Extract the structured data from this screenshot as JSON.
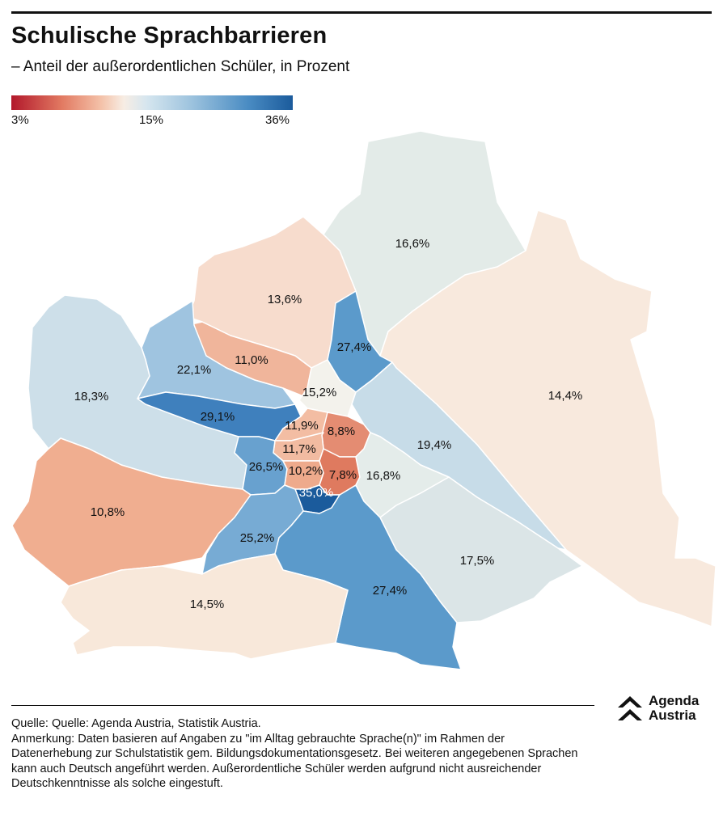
{
  "title": "Schulische Sprachbarrieren",
  "subtitle": "– Anteil der außerordentlichen Schüler, in Prozent",
  "legend": {
    "min_label": "3%",
    "mid_label": "15%",
    "max_label": "36%",
    "colors": [
      "#b2182b",
      "#e27a62",
      "#f4c2a9",
      "#f7ede4",
      "#d6e6ef",
      "#9dc3de",
      "#4a8cc3",
      "#1b5b9c"
    ]
  },
  "districts": [
    {
      "value": 16.6,
      "label": "16,6%",
      "color": "#e3ebe8"
    },
    {
      "value": 14.4,
      "label": "14,4%",
      "color": "#f8e9dd"
    },
    {
      "value": 13.6,
      "label": "13,6%",
      "color": "#f7dccd"
    },
    {
      "value": 27.4,
      "label": "27,4%",
      "color": "#5b9acb"
    },
    {
      "value": 11.0,
      "label": "11,0%",
      "color": "#f0b59b"
    },
    {
      "value": 22.1,
      "label": "22,1%",
      "color": "#9fc4e0"
    },
    {
      "value": 18.3,
      "label": "18,3%",
      "color": "#cddfe9"
    },
    {
      "value": 15.2,
      "label": "15,2%",
      "color": "#f3f2ec"
    },
    {
      "value": 29.1,
      "label": "29,1%",
      "color": "#3f80bd"
    },
    {
      "value": 11.9,
      "label": "11,9%",
      "color": "#f3bda3"
    },
    {
      "value": 8.8,
      "label": "8,8%",
      "color": "#e48c72"
    },
    {
      "value": 11.7,
      "label": "11,7%",
      "color": "#f2bba1"
    },
    {
      "value": 19.4,
      "label": "19,4%",
      "color": "#c7dce8"
    },
    {
      "value": 26.5,
      "label": "26,5%",
      "color": "#68a1cf"
    },
    {
      "value": 10.2,
      "label": "10,2%",
      "color": "#eeaa8c"
    },
    {
      "value": 7.8,
      "label": "7,8%",
      "color": "#df7a5f"
    },
    {
      "value": 16.8,
      "label": "16,8%",
      "color": "#e4ecea"
    },
    {
      "value": 35.0,
      "label": "35,0%",
      "color": "#1b5b9c"
    },
    {
      "value": 10.8,
      "label": "10,8%",
      "color": "#f0ae90"
    },
    {
      "value": 25.2,
      "label": "25,2%",
      "color": "#77abd4"
    },
    {
      "value": 17.5,
      "label": "17,5%",
      "color": "#dbe5e7"
    },
    {
      "value": 27.4,
      "label": "27,4%",
      "color": "#5b9acb"
    },
    {
      "value": 14.5,
      "label": "14,5%",
      "color": "#f8e8da"
    }
  ],
  "logo": {
    "line1": "Agenda",
    "line2": "Austria"
  },
  "source": "Quelle: Quelle: Agenda Austria, Statistik Austria.",
  "note": "Anmerkung: Daten basieren auf Angaben zu \"im Alltag gebrauchte Sprache(n)\" im Rahmen der Datenerhebung zur Schulstatistik gem. Bildungsdokumentationsgesetz. Bei weiteren angegebenen Sprachen kann auch Deutsch angeführt werden. Außerordentliche Schüler werden aufgrund nicht ausreichender Deutschkenntnisse als solche eingestuft."
}
